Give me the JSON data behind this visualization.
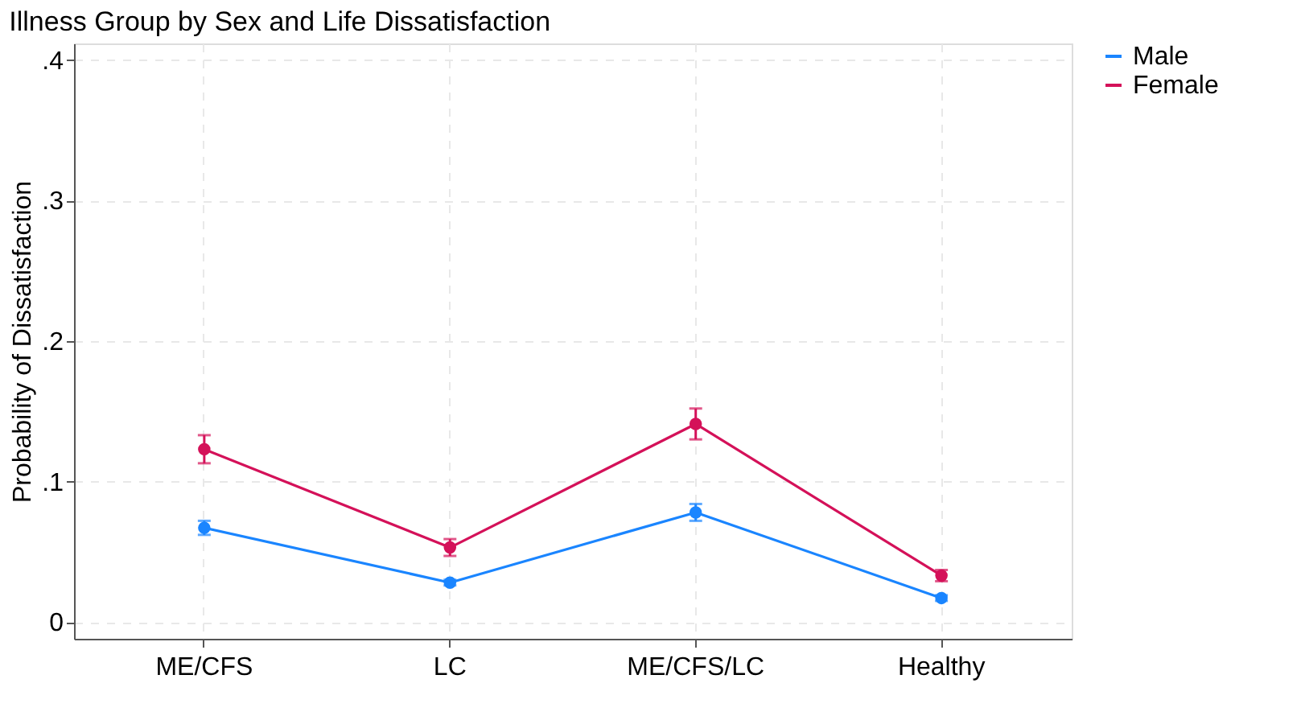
{
  "chart_data": {
    "type": "line",
    "title": "Illness Group by Sex and Life Dissatisfaction",
    "ylabel": "Probability of Dissatisfaction",
    "categories": [
      "ME/CFS",
      "LC",
      "ME/CFS/LC",
      "Healthy"
    ],
    "series": [
      {
        "name": "Male",
        "color": "#1a85ff",
        "values": [
          0.067,
          0.028,
          0.078,
          0.017
        ],
        "errors": [
          0.005,
          0.002,
          0.006,
          0.002
        ]
      },
      {
        "name": "Female",
        "color": "#d41159",
        "values": [
          0.123,
          0.053,
          0.141,
          0.033
        ],
        "errors": [
          0.01,
          0.006,
          0.011,
          0.004
        ]
      }
    ],
    "ylim": [
      -0.012,
      0.412
    ],
    "yticks": [
      {
        "value": 0,
        "label": "0"
      },
      {
        "value": 0.1,
        "label": ".1"
      },
      {
        "value": 0.2,
        "label": ".2"
      },
      {
        "value": 0.3,
        "label": ".3"
      },
      {
        "value": 0.4,
        "label": ".4"
      }
    ],
    "grid": true,
    "legend": "right",
    "marker": "circle",
    "line_style": "solid"
  }
}
